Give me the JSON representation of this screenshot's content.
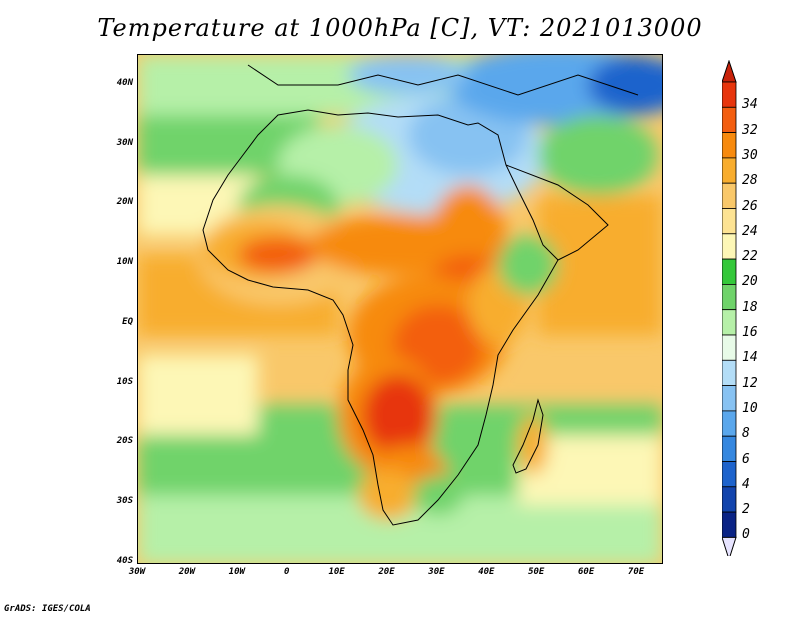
{
  "title": "Temperature at 1000hPa [C], VT: 2021013000",
  "credit": "GrADS: IGES/COLA",
  "lat_labels": [
    "40N",
    "30N",
    "20N",
    "10N",
    "EQ",
    "10S",
    "20S",
    "30S",
    "40S"
  ],
  "lon_labels": [
    "30W",
    "20W",
    "10W",
    "0",
    "10E",
    "20E",
    "30E",
    "40E",
    "50E",
    "60E",
    "70E"
  ],
  "map": {
    "lon_range": [
      -30,
      75
    ],
    "lat_range": [
      -40,
      45
    ]
  },
  "colorbar": {
    "labels": [
      "34",
      "32",
      "30",
      "28",
      "26",
      "24",
      "22",
      "20",
      "18",
      "16",
      "14",
      "12",
      "10",
      "8",
      "6",
      "4",
      "2",
      "0"
    ],
    "colors": [
      "#e7350d",
      "#f35e10",
      "#f78a0e",
      "#f8ad2e",
      "#f9c86a",
      "#fde393",
      "#fdf7b6",
      "#34c83a",
      "#6fd36a",
      "#b6f0a8",
      "#e8fbe8",
      "#b3ddf7",
      "#87c2f2",
      "#5aa7ec",
      "#3587df",
      "#1d63cc",
      "#1244ad",
      "#0a2385"
    ],
    "over_color": "#c8220a",
    "under_color": "#e7e4ff"
  }
}
